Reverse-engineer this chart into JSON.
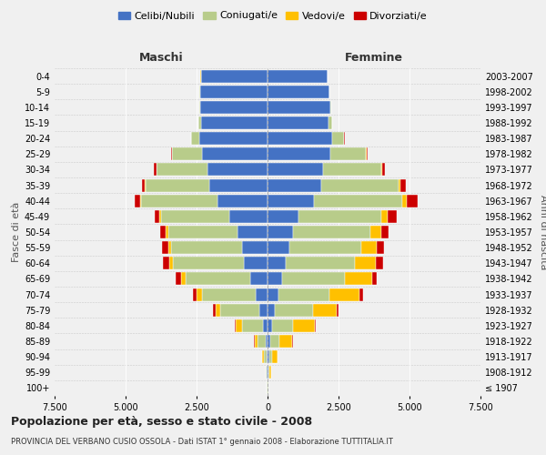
{
  "age_groups": [
    "100+",
    "95-99",
    "90-94",
    "85-89",
    "80-84",
    "75-79",
    "70-74",
    "65-69",
    "60-64",
    "55-59",
    "50-54",
    "45-49",
    "40-44",
    "35-39",
    "30-34",
    "25-29",
    "20-24",
    "15-19",
    "10-14",
    "5-9",
    "0-4"
  ],
  "birth_years": [
    "≤ 1907",
    "1908-1912",
    "1913-1917",
    "1918-1922",
    "1923-1927",
    "1928-1932",
    "1933-1937",
    "1938-1942",
    "1943-1947",
    "1948-1952",
    "1953-1957",
    "1958-1962",
    "1963-1967",
    "1968-1972",
    "1973-1977",
    "1978-1982",
    "1983-1987",
    "1988-1992",
    "1993-1997",
    "1998-2002",
    "2003-2007"
  ],
  "male_celibi": [
    10,
    25,
    45,
    70,
    150,
    280,
    430,
    620,
    820,
    900,
    1050,
    1350,
    1750,
    2050,
    2100,
    2300,
    2400,
    2350,
    2380,
    2380,
    2350
  ],
  "male_coniugati": [
    10,
    35,
    80,
    280,
    750,
    1380,
    1880,
    2250,
    2500,
    2500,
    2450,
    2400,
    2700,
    2250,
    1800,
    1050,
    280,
    70,
    15,
    8,
    5
  ],
  "male_vedovi": [
    3,
    15,
    55,
    110,
    230,
    180,
    185,
    185,
    140,
    90,
    75,
    55,
    35,
    18,
    8,
    8,
    4,
    3,
    2,
    2,
    2
  ],
  "male_divorziati": [
    1,
    4,
    8,
    18,
    35,
    90,
    120,
    185,
    230,
    215,
    210,
    185,
    190,
    120,
    90,
    45,
    18,
    4,
    3,
    3,
    3
  ],
  "female_nubili": [
    8,
    22,
    50,
    85,
    160,
    270,
    380,
    510,
    650,
    760,
    910,
    1100,
    1650,
    1900,
    1950,
    2200,
    2260,
    2160,
    2210,
    2170,
    2110
  ],
  "female_coniugate": [
    12,
    42,
    110,
    320,
    750,
    1320,
    1800,
    2200,
    2420,
    2530,
    2720,
    2900,
    3100,
    2700,
    2050,
    1250,
    430,
    110,
    28,
    8,
    4
  ],
  "female_vedove": [
    8,
    52,
    185,
    470,
    760,
    850,
    1050,
    960,
    760,
    570,
    380,
    240,
    140,
    75,
    45,
    28,
    13,
    4,
    3,
    3,
    3
  ],
  "female_divorziate": [
    1,
    4,
    8,
    18,
    35,
    72,
    120,
    185,
    235,
    235,
    255,
    305,
    400,
    185,
    90,
    45,
    18,
    4,
    3,
    3,
    3
  ],
  "colors": {
    "celibi_nubili": "#4472c4",
    "coniugati": "#b8cc8a",
    "vedovi": "#ffc000",
    "divorziati": "#cc0000"
  },
  "xlim": 7500,
  "title": "Popolazione per età, sesso e stato civile - 2008",
  "subtitle": "PROVINCIA DEL VERBANO CUSIO OSSOLA - Dati ISTAT 1° gennaio 2008 - Elaborazione TUTTITALIA.IT",
  "ylabel_left": "Fasce di età",
  "ylabel_right": "Anni di nascita",
  "xlabel_male": "Maschi",
  "xlabel_female": "Femmine",
  "bg_color": "#f0f0f0"
}
